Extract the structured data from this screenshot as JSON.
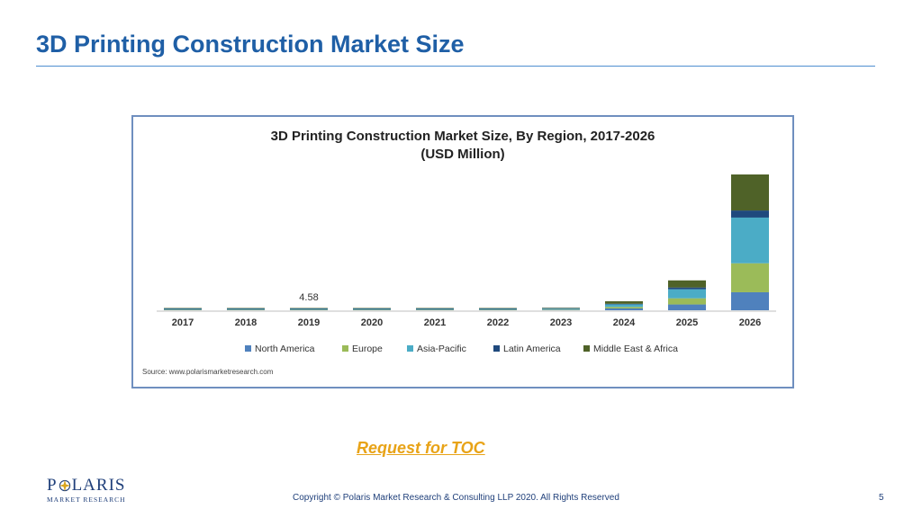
{
  "slide": {
    "title": "3D Printing Construction Market Size",
    "toc_link": "Request for TOC",
    "copyright": "Copyright © Polaris Market Research & Consulting LLP 2020. All Rights Reserved",
    "page_number": "5",
    "logo": {
      "word_left": "P",
      "word_right": "LARIS",
      "sub": "MARKET RESEARCH",
      "icon": "compass-star-icon"
    }
  },
  "chart_data": {
    "type": "bar",
    "stacked": true,
    "title": "3D Printing Construction Market Size, By Region, 2017-2026",
    "subtitle": "(USD Million)",
    "source": "Source: www.polarismarketresearch.com",
    "categories": [
      "2017",
      "2018",
      "2019",
      "2020",
      "2021",
      "2022",
      "2023",
      "2024",
      "2025",
      "2026"
    ],
    "annotation": {
      "category": "2019",
      "label": "4.58"
    },
    "legend_position": "bottom",
    "grid": false,
    "series": [
      {
        "name": "North America",
        "color": "#4f81bd",
        "values": [
          1.0,
          1.2,
          1.4,
          1.3,
          1.5,
          1.8,
          4,
          14,
          45,
          140
        ]
      },
      {
        "name": "Europe",
        "color": "#9bbb59",
        "values": [
          0.9,
          1.0,
          1.2,
          1.1,
          1.2,
          1.5,
          4,
          12,
          48,
          225
        ]
      },
      {
        "name": "Asia-Pacific",
        "color": "#4bacc6",
        "values": [
          0.9,
          1.1,
          1.3,
          1.2,
          1.4,
          1.7,
          5,
          20,
          70,
          355
        ]
      },
      {
        "name": "Latin America",
        "color": "#1f497d",
        "values": [
          0.2,
          0.2,
          0.3,
          0.3,
          0.3,
          0.4,
          1,
          4,
          14,
          55
        ]
      },
      {
        "name": "Middle East & Africa",
        "color": "#4f6228",
        "values": [
          0.3,
          0.4,
          0.4,
          0.4,
          0.5,
          0.6,
          3,
          20,
          55,
          280
        ]
      }
    ]
  }
}
